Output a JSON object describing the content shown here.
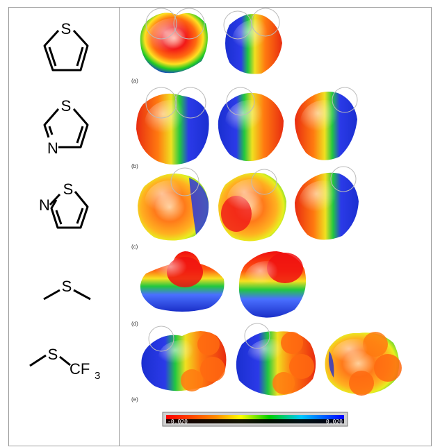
{
  "rows": [
    {
      "panel_label": "(a)",
      "atoms": [
        "S"
      ],
      "map_count": 2
    },
    {
      "panel_label": "(b)",
      "atoms": [
        "S",
        "N"
      ],
      "map_count": 3
    },
    {
      "panel_label": "(c)",
      "atoms": [
        "N",
        "S"
      ],
      "map_count": 3
    },
    {
      "panel_label": "(d)",
      "atoms": [
        "S"
      ],
      "map_count": 2
    },
    {
      "panel_label": "(e)",
      "atoms": [
        "S",
        "CF",
        "3"
      ],
      "map_count": 3
    }
  ],
  "colorbar": {
    "min_label": "-0.020",
    "max_label": "0.020",
    "colors": [
      "#ff0000",
      "#ff8c00",
      "#ffff00",
      "#00d000",
      "#00c8ff",
      "#0000ff"
    ]
  }
}
